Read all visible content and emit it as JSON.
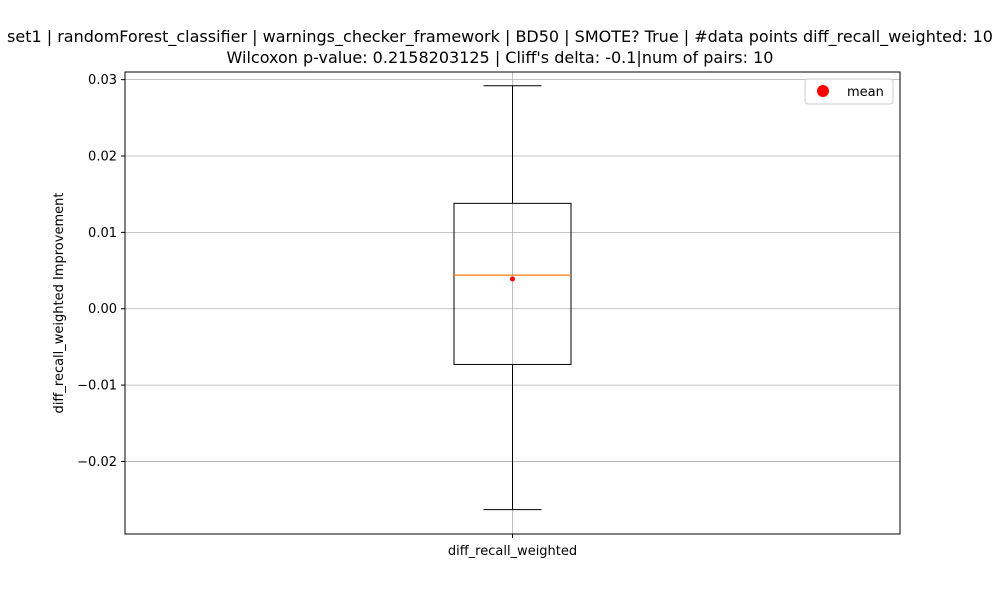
{
  "chart_data": {
    "type": "box",
    "title_lines": [
      "set1 | randomForest_classifier | warnings_checker_framework | BD50 | SMOTE? True | #data points diff_recall_weighted: 10",
      "Wilcoxon p-value: 0.2158203125 | Cliff's delta: -0.1|num of pairs: 10"
    ],
    "xlabel": "",
    "ylabel": "diff_recall_weighted Improvement",
    "categories": [
      "diff_recall_weighted"
    ],
    "ylim": [
      -0.0295,
      0.031
    ],
    "yticks": [
      -0.02,
      -0.01,
      0.0,
      0.01,
      0.02,
      0.03
    ],
    "ytick_labels": [
      "−0.02",
      "−0.01",
      "0.00",
      "0.01",
      "0.02",
      "0.03"
    ],
    "grid": true,
    "legend": {
      "placement": "top-right",
      "entries": [
        {
          "label": "mean",
          "color": "#ff0000",
          "marker": "circle"
        }
      ]
    },
    "box": {
      "whisker_low": -0.0263,
      "q1": -0.0073,
      "median": 0.0044,
      "q3": 0.0138,
      "whisker_high": 0.0292,
      "mean": 0.0039
    },
    "colors": {
      "median": "#ff7f0e",
      "mean": "#ff0000",
      "box": "#000000",
      "grid": "#b0b0b0"
    }
  }
}
